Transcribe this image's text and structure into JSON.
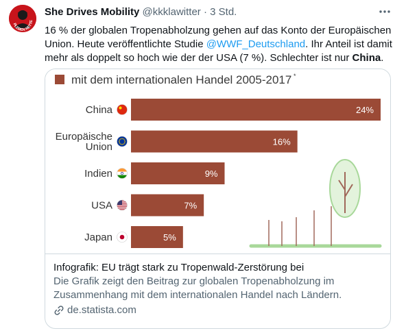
{
  "tweet": {
    "author_name": "She Drives Mobility",
    "handle": "@kkklawitter",
    "separator": "·",
    "time": "3 Std.",
    "avatar_text": "PLEBEN RETTEN",
    "text_before_mention": "16 % der globalen Tropenabholzung gehen auf das Konto der Europäischen Union. Heute veröffentlichte Studie ",
    "mention": "@WWF_Deutschland",
    "text_after_mention": ". Ihr Anteil ist damit mehr als doppelt so hoch wie der der USA (7 %). Schlechter ist nur ",
    "text_bold": "China",
    "text_end": "."
  },
  "card": {
    "title": "Infografik: EU trägt stark zu Tropenwald-Zerstörung bei",
    "description": "Die Grafik zeigt den Beitrag zur globalen Tropenabholzung im Zusammenhang mit dem internationalen Handel nach Ländern.",
    "domain": "de.statista.com"
  },
  "chart_data": {
    "type": "bar",
    "orientation": "horizontal",
    "legend_label": "mit dem internationalen Handel 2005-2017",
    "legend_footnote": "*",
    "categories": [
      "China",
      "Europäische Union",
      "Indien",
      "USA",
      "Japan"
    ],
    "category_lines": [
      [
        "China"
      ],
      [
        "Europäische",
        "Union"
      ],
      [
        "Indien"
      ],
      [
        "USA"
      ],
      [
        "Japan"
      ]
    ],
    "flags": [
      "china-flag-icon",
      "eu-flag-icon",
      "india-flag-icon",
      "usa-flag-icon",
      "japan-flag-icon"
    ],
    "values": [
      24,
      16,
      9,
      7,
      5
    ],
    "value_labels": [
      "24%",
      "16%",
      "9%",
      "7%",
      "5%"
    ],
    "unit": "%",
    "xlim": [
      0,
      24
    ],
    "bar_color": "#9b4a36",
    "grid": false
  },
  "colors": {
    "mention": "#1d9bf0",
    "secondary": "#536471",
    "avatar": "#c8141b",
    "tree": "#a8d89a"
  },
  "icons": {
    "more": "more-horizontal-icon",
    "link": "link-icon"
  }
}
